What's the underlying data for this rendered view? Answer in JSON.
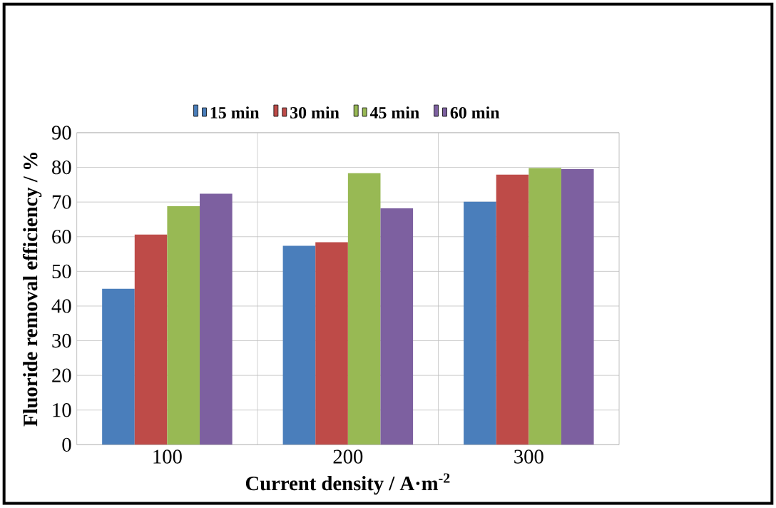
{
  "chart_data": {
    "type": "bar",
    "xlabel": "Current density / A·m$^{-2}$",
    "ylabel": "Fluoride removal efficiency / %",
    "categories": [
      "100",
      "200",
      "300"
    ],
    "series": [
      {
        "name": "15 min",
        "color": "#4a7ebb",
        "values": [
          45.0,
          57.4,
          70.1
        ]
      },
      {
        "name": "30 min",
        "color": "#be4b48",
        "values": [
          60.6,
          58.4,
          77.9
        ]
      },
      {
        "name": "45 min",
        "color": "#98b954",
        "values": [
          68.8,
          78.3,
          79.8
        ]
      },
      {
        "name": "60 min",
        "color": "#7d60a0",
        "values": [
          72.4,
          68.2,
          79.5
        ]
      }
    ],
    "ylim": [
      0,
      90
    ],
    "yticks": [
      0,
      10,
      20,
      30,
      40,
      50,
      60,
      70,
      80,
      90
    ],
    "grid": true,
    "legend": "top"
  }
}
